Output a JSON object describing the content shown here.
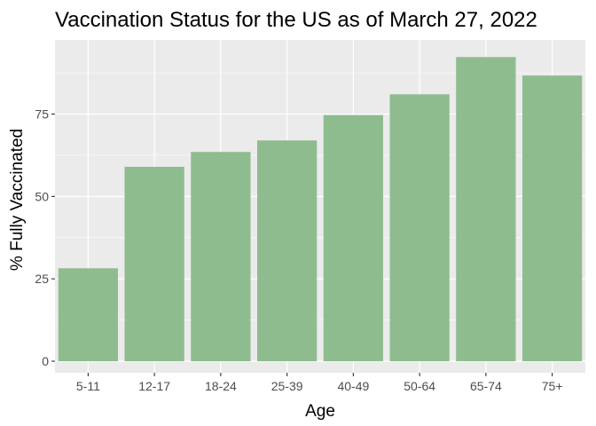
{
  "chart_data": {
    "type": "bar",
    "title": "Vaccination Status for the US as of March 27, 2022",
    "xlabel": "Age",
    "ylabel": "% Fully Vaccinated",
    "categories": [
      "5-11",
      "12-17",
      "18-24",
      "25-39",
      "40-49",
      "50-64",
      "65-74",
      "75+"
    ],
    "values": [
      28.2,
      59.0,
      63.5,
      67.0,
      74.7,
      81.0,
      92.3,
      86.7
    ],
    "ylim": [
      -3.5,
      97.5
    ],
    "yticks": [
      0,
      25,
      50,
      75
    ],
    "ytick_labels": [
      "0",
      "25",
      "50",
      "75"
    ],
    "grid": true,
    "legend": "none",
    "colors": {
      "bar": "#8fbc8f",
      "panel": "#ebebeb",
      "grid": "#ffffff"
    }
  }
}
